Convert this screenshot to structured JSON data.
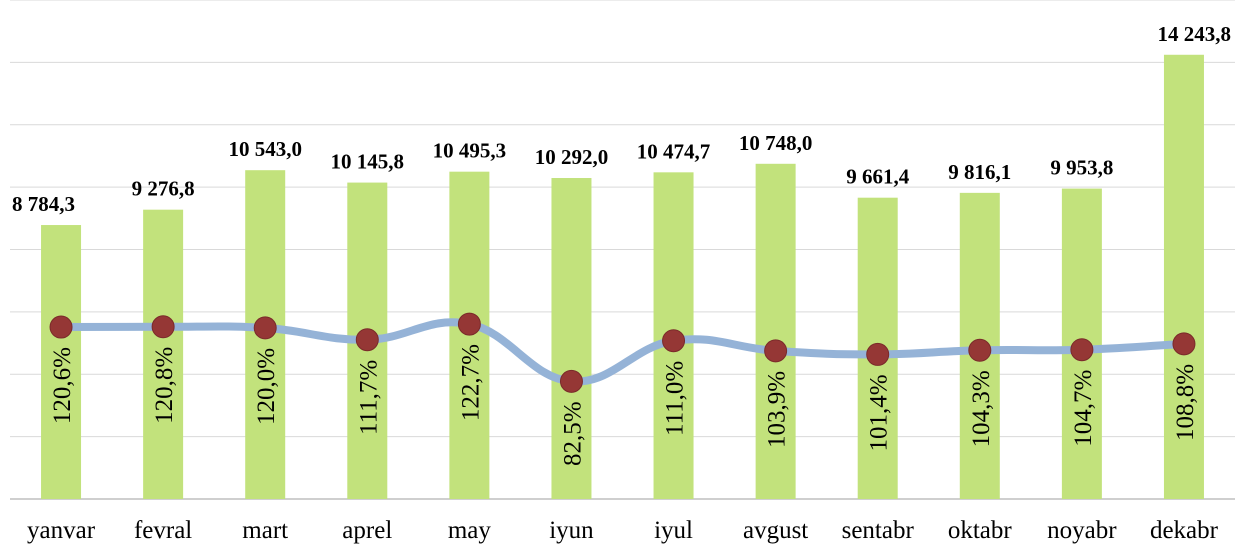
{
  "chart_data": {
    "type": "bar",
    "categories": [
      "yanvar",
      "fevral",
      "mart",
      "aprel",
      "may",
      "iyun",
      "iyul",
      "avgust",
      "sentabr",
      "oktabr",
      "noyabr",
      "dekabr"
    ],
    "series": [
      {
        "type": "bar",
        "values": [
          8784.3,
          9276.8,
          10543.0,
          10145.8,
          10495.3,
          10292.0,
          10474.7,
          10748.0,
          9661.4,
          9816.1,
          9953.8,
          14243.8
        ],
        "labels": [
          "8 784,3",
          "9 276,8",
          "10 543,0",
          "10 145,8",
          "10 495,3",
          "10 292,0",
          "10 474,7",
          "10 748,0",
          "9 661,4",
          "9 816,1",
          "9 953,8",
          "14 243,8"
        ]
      },
      {
        "type": "line",
        "values": [
          120.6,
          120.8,
          120.0,
          111.7,
          122.7,
          82.5,
          111.0,
          103.9,
          101.4,
          104.3,
          104.7,
          108.8
        ],
        "labels": [
          "120,6%",
          "120,8%",
          "120,0%",
          "111,7%",
          "122,7%",
          "82,5%",
          "111,0%",
          "103,9%",
          "101,4%",
          "104,3%",
          "104,7%",
          "108,8%"
        ]
      }
    ],
    "ylim": [
      0,
      16000
    ],
    "y2lim": [
      0,
      350
    ],
    "grid": true,
    "colors": {
      "bar": "#c2e27c",
      "line": "#95b3d7",
      "marker": "#953735",
      "marker_edge": "#7a2b2a"
    }
  }
}
